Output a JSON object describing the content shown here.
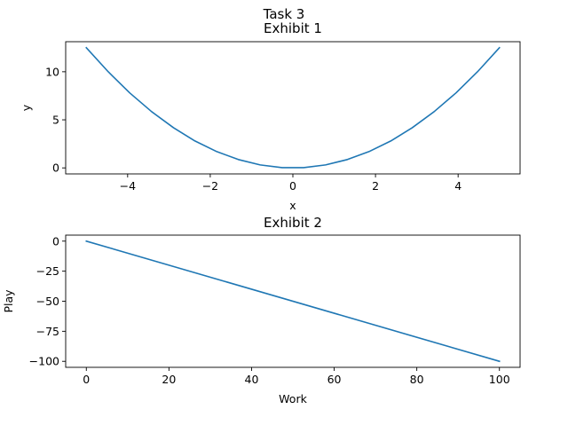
{
  "suptitle": "Task 3",
  "chart_data": [
    {
      "type": "line",
      "title": "Exhibit 1",
      "xlabel": "x",
      "ylabel": "y",
      "xlim": [
        -5.5,
        5.5
      ],
      "ylim": [
        -0.625,
        13.125
      ],
      "xticks": [
        -4,
        -2,
        0,
        2,
        4
      ],
      "xtick_labels": [
        "−4",
        "−2",
        "0",
        "2",
        "4"
      ],
      "yticks": [
        0,
        5,
        10
      ],
      "ytick_labels": [
        "0",
        "5",
        "10"
      ],
      "grid": false,
      "color": "#1f77b4",
      "series": [
        {
          "x": [
            -5,
            -4.47,
            -3.95,
            -3.42,
            -2.89,
            -2.37,
            -1.84,
            -1.32,
            -0.79,
            -0.26,
            0.26,
            0.79,
            1.32,
            1.84,
            2.37,
            2.89,
            3.42,
            3.95,
            4.47,
            5
          ],
          "y": [
            12.5,
            10.0,
            7.8,
            5.85,
            4.18,
            2.8,
            1.69,
            0.87,
            0.31,
            0.03,
            0.03,
            0.31,
            0.87,
            1.69,
            2.8,
            4.18,
            5.85,
            7.8,
            10.0,
            12.5
          ]
        }
      ]
    },
    {
      "type": "line",
      "title": "Exhibit 2",
      "xlabel": "Work",
      "ylabel": "Play",
      "xlim": [
        -5,
        105
      ],
      "ylim": [
        -105,
        5
      ],
      "xticks": [
        0,
        20,
        40,
        60,
        80,
        100
      ],
      "xtick_labels": [
        "0",
        "20",
        "40",
        "60",
        "80",
        "100"
      ],
      "yticks": [
        0,
        -25,
        -50,
        -75,
        -100
      ],
      "ytick_labels": [
        "0",
        "−25",
        "−50",
        "−75",
        "−100"
      ],
      "grid": false,
      "color": "#1f77b4",
      "series": [
        {
          "x": [
            0,
            100
          ],
          "y": [
            0,
            -100
          ]
        }
      ]
    }
  ]
}
